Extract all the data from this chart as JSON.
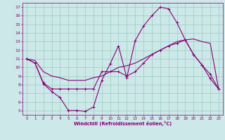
{
  "xlabel": "Windchill (Refroidissement éolien,°C)",
  "xlim": [
    -0.5,
    23.5
  ],
  "ylim": [
    4.5,
    17.5
  ],
  "xticks": [
    0,
    1,
    2,
    3,
    4,
    5,
    6,
    7,
    8,
    9,
    10,
    11,
    12,
    13,
    14,
    15,
    16,
    17,
    18,
    19,
    20,
    21,
    22,
    23
  ],
  "yticks": [
    5,
    6,
    7,
    8,
    9,
    10,
    11,
    12,
    13,
    14,
    15,
    16,
    17
  ],
  "bg_color": "#cce8e8",
  "line_color": "#880077",
  "grid_color": "#99ccbb",
  "line1_x": [
    0,
    1,
    2,
    3,
    4,
    5,
    6,
    7,
    8,
    9,
    10,
    11,
    12,
    13,
    14,
    15,
    16,
    17,
    18,
    19,
    20,
    21,
    22,
    23
  ],
  "line1_y": [
    11.0,
    10.5,
    8.1,
    7.2,
    6.5,
    5.0,
    5.0,
    4.9,
    5.4,
    8.5,
    10.4,
    12.5,
    8.8,
    13.1,
    14.8,
    16.0,
    17.0,
    16.8,
    15.2,
    13.2,
    11.5,
    10.3,
    8.7,
    7.5
  ],
  "line2_x": [
    0,
    1,
    2,
    3,
    4,
    5,
    6,
    7,
    8,
    9,
    10,
    11,
    12,
    13,
    14,
    15,
    16,
    17,
    18,
    19,
    20,
    21,
    22,
    23
  ],
  "line2_y": [
    11.0,
    10.5,
    8.2,
    7.5,
    7.5,
    7.5,
    7.5,
    7.5,
    7.5,
    9.5,
    9.5,
    9.5,
    9.0,
    9.5,
    10.5,
    11.5,
    12.0,
    12.5,
    12.8,
    13.2,
    11.5,
    10.3,
    9.2,
    7.5
  ],
  "line3_x": [
    0,
    1,
    2,
    3,
    4,
    5,
    6,
    7,
    8,
    9,
    10,
    11,
    12,
    13,
    14,
    15,
    16,
    17,
    18,
    19,
    20,
    21,
    22,
    23
  ],
  "line3_y": [
    11.0,
    10.8,
    9.5,
    9.0,
    8.8,
    8.5,
    8.5,
    8.5,
    8.8,
    9.0,
    9.5,
    10.0,
    10.2,
    10.5,
    11.0,
    11.5,
    12.0,
    12.5,
    13.0,
    13.2,
    13.3,
    13.0,
    12.8,
    7.5
  ]
}
